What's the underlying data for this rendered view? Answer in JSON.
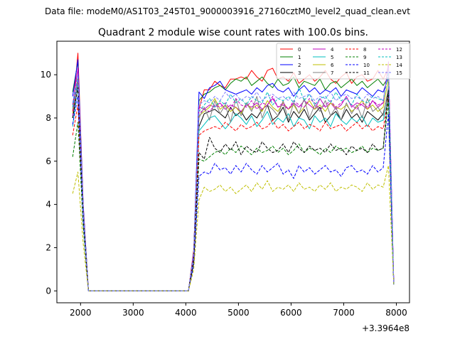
{
  "figure": {
    "suptitle": "Data file: modeM0/AS1T03_245T01_9000003916_27160cztM0_level2_quad_clean.evt"
  },
  "chart_data": {
    "type": "line",
    "title": "Quadrant 2 module wise count rates with 100.0s bins.",
    "xlabel": "",
    "ylabel": "",
    "x_offset_label": "+3.3964e8",
    "xlim": [
      1550,
      8250
    ],
    "ylim": [
      -0.55,
      11.55
    ],
    "xticks": [
      2000,
      3000,
      4000,
      5000,
      6000,
      7000,
      8000
    ],
    "xtick_labels": [
      "2000",
      "3000",
      "4000",
      "5000",
      "6000",
      "7000",
      "8000"
    ],
    "yticks": [
      0,
      2,
      4,
      6,
      8,
      10
    ],
    "ytick_labels": [
      "0",
      "2",
      "4",
      "6",
      "8",
      "10"
    ],
    "grid": false,
    "legend_position": "top-right",
    "legend_columns": 4,
    "gap_x": [
      2150,
      2250,
      2350,
      2450,
      2550,
      2650,
      2750,
      2850,
      2950,
      3050,
      3150,
      3250,
      3350,
      3450,
      3550,
      3650,
      3750,
      3850,
      3950,
      4050
    ],
    "seg1_x": [
      1850,
      1950,
      2050,
      2150
    ],
    "seg2_x": [
      4050,
      4150,
      4250,
      4350,
      4450,
      4550,
      4650,
      4750,
      4850,
      4950,
      5050,
      5150,
      5250,
      5350,
      5450,
      5550,
      5650,
      5750,
      5850,
      5950,
      6050,
      6150,
      6250,
      6350,
      6450,
      6550,
      6650,
      6750,
      6850,
      6950,
      7050,
      7150,
      7250,
      7350,
      7450,
      7550,
      7650,
      7750,
      7850,
      7950
    ],
    "series": [
      {
        "name": "0",
        "color": "#ff0000",
        "dash": false,
        "seg1": [
          8.3,
          11.0,
          4.0,
          0.0
        ],
        "seg2": [
          0.0,
          1.9,
          8.4,
          9.3,
          9.3,
          9.7,
          9.5,
          9.4,
          9.8,
          9.8,
          9.9,
          9.8,
          10.2,
          9.9,
          9.7,
          10.2,
          10.3,
          9.8,
          9.9,
          9.7,
          10.1,
          9.6,
          9.8,
          10.0,
          9.7,
          9.9,
          10.2,
          9.8,
          9.6,
          9.9,
          10.1,
          9.6,
          9.9,
          10.0,
          9.7,
          9.8,
          10.2,
          9.8,
          10.3,
          0.4
        ]
      },
      {
        "name": "1",
        "color": "#008000",
        "dash": false,
        "seg1": [
          9.2,
          10.6,
          3.9,
          0.0
        ],
        "seg2": [
          0.0,
          1.7,
          8.8,
          9.1,
          9.2,
          9.4,
          9.5,
          9.3,
          9.6,
          9.8,
          9.7,
          9.9,
          9.5,
          9.7,
          9.9,
          9.6,
          9.4,
          9.8,
          9.5,
          9.6,
          9.9,
          9.4,
          9.7,
          9.6,
          9.5,
          9.8,
          9.3,
          9.6,
          9.7,
          9.4,
          9.6,
          9.8,
          9.5,
          9.7,
          9.4,
          9.6,
          9.8,
          9.5,
          9.9,
          0.4
        ]
      },
      {
        "name": "2",
        "color": "#0000ff",
        "dash": false,
        "seg1": [
          9.0,
          10.7,
          4.0,
          0.0
        ],
        "seg2": [
          0.0,
          1.8,
          9.2,
          8.9,
          9.4,
          9.5,
          9.7,
          9.3,
          9.2,
          9.1,
          9.2,
          9.3,
          9.1,
          9.4,
          9.2,
          9.5,
          9.6,
          9.3,
          9.2,
          9.4,
          9.0,
          9.3,
          9.5,
          9.2,
          9.4,
          9.1,
          9.3,
          9.2,
          9.4,
          9.0,
          9.3,
          9.2,
          9.1,
          9.4,
          9.2,
          9.0,
          9.3,
          9.2,
          9.9,
          0.4
        ]
      },
      {
        "name": "3",
        "color": "#000000",
        "dash": false,
        "seg1": [
          8.0,
          9.9,
          3.7,
          0.0
        ],
        "seg2": [
          0.0,
          1.6,
          7.6,
          8.2,
          8.3,
          8.4,
          8.2,
          8.0,
          8.5,
          8.1,
          8.3,
          7.9,
          8.2,
          8.0,
          8.4,
          8.6,
          7.9,
          8.1,
          8.5,
          7.8,
          8.3,
          8.0,
          8.4,
          7.9,
          8.2,
          8.5,
          7.8,
          8.1,
          8.3,
          7.9,
          8.4,
          8.0,
          8.2,
          7.8,
          8.3,
          8.1,
          7.9,
          8.2,
          9.2,
          0.3
        ]
      },
      {
        "name": "4",
        "color": "#bf00bf",
        "dash": false,
        "seg1": [
          8.6,
          10.3,
          3.8,
          0.0
        ],
        "seg2": [
          0.0,
          1.7,
          8.5,
          8.4,
          8.6,
          8.5,
          8.7,
          8.4,
          8.6,
          8.5,
          8.3,
          8.6,
          8.5,
          8.7,
          8.4,
          8.6,
          8.9,
          8.5,
          8.6,
          8.4,
          8.7,
          8.5,
          8.8,
          8.6,
          8.4,
          8.9,
          8.5,
          8.7,
          8.4,
          8.6,
          9.0,
          8.5,
          8.7,
          8.6,
          8.4,
          8.8,
          8.5,
          8.7,
          10.5,
          0.4
        ]
      },
      {
        "name": "5",
        "color": "#00bfbf",
        "dash": false,
        "seg1": [
          7.6,
          9.6,
          3.6,
          0.0
        ],
        "seg2": [
          0.0,
          1.5,
          7.4,
          7.7,
          8.0,
          8.1,
          7.8,
          7.5,
          7.8,
          8.2,
          8.0,
          7.7,
          8.1,
          7.6,
          7.9,
          8.3,
          7.7,
          8.0,
          7.8,
          8.2,
          7.6,
          8.0,
          7.9,
          7.5,
          8.1,
          7.8,
          8.0,
          7.6,
          8.2,
          7.9,
          7.7,
          8.0,
          7.8,
          8.1,
          7.6,
          8.0,
          7.8,
          7.9,
          9.0,
          0.3
        ]
      },
      {
        "name": "6",
        "color": "#bfbf00",
        "dash": false,
        "seg1": [
          8.2,
          9.8,
          3.7,
          0.0
        ],
        "seg2": [
          0.0,
          1.6,
          8.1,
          8.3,
          8.5,
          8.9,
          8.4,
          8.6,
          8.3,
          8.5,
          8.2,
          8.7,
          8.4,
          8.6,
          8.3,
          8.8,
          8.5,
          8.3,
          8.7,
          8.4,
          8.6,
          8.2,
          8.5,
          8.8,
          8.4,
          8.6,
          8.3,
          8.7,
          8.5,
          8.4,
          8.6,
          8.3,
          8.5,
          8.8,
          8.4,
          8.6,
          8.3,
          8.5,
          9.8,
          0.3
        ]
      },
      {
        "name": "7",
        "color": "#808080",
        "dash": false,
        "seg1": [
          8.4,
          9.7,
          3.7,
          0.0
        ],
        "seg2": [
          0.0,
          1.6,
          8.0,
          8.5,
          7.9,
          8.8,
          8.2,
          8.6,
          7.8,
          8.9,
          8.1,
          8.7,
          8.3,
          9.0,
          8.0,
          8.6,
          8.4,
          8.1,
          8.8,
          7.9,
          8.7,
          8.2,
          8.9,
          8.0,
          8.6,
          8.3,
          8.8,
          8.1,
          8.5,
          7.9,
          8.7,
          8.2,
          8.6,
          8.0,
          8.9,
          8.3,
          8.5,
          8.1,
          9.4,
          0.3
        ]
      },
      {
        "name": "8",
        "color": "#ff0000",
        "dash": true,
        "seg1": [
          7.2,
          8.6,
          3.2,
          0.0
        ],
        "seg2": [
          0.0,
          1.5,
          7.2,
          7.4,
          7.5,
          7.6,
          7.5,
          7.8,
          7.6,
          7.4,
          7.7,
          7.5,
          7.6,
          7.8,
          7.5,
          7.6,
          7.9,
          7.5,
          7.7,
          7.4,
          7.6,
          7.8,
          7.5,
          7.7,
          7.6,
          7.4,
          7.8,
          7.5,
          7.6,
          7.7,
          7.4,
          7.6,
          7.8,
          7.5,
          7.7,
          7.4,
          7.6,
          7.5,
          9.0,
          0.3
        ]
      },
      {
        "name": "9",
        "color": "#008000",
        "dash": true,
        "seg1": [
          6.2,
          7.8,
          3.0,
          0.0
        ],
        "seg2": [
          0.0,
          1.3,
          6.1,
          6.0,
          6.2,
          6.4,
          6.5,
          6.3,
          6.6,
          6.4,
          6.7,
          6.5,
          6.3,
          6.6,
          6.4,
          6.5,
          6.7,
          6.4,
          6.6,
          6.3,
          6.5,
          6.8,
          6.4,
          6.6,
          6.5,
          6.3,
          6.6,
          6.4,
          6.7,
          6.5,
          6.6,
          6.4,
          6.5,
          6.7,
          6.4,
          6.6,
          6.5,
          6.6,
          8.8,
          0.3
        ]
      },
      {
        "name": "10",
        "color": "#0000ff",
        "dash": true,
        "seg1": [
          7.7,
          9.0,
          3.3,
          0.0
        ],
        "seg2": [
          0.0,
          1.2,
          5.3,
          5.5,
          5.4,
          5.9,
          5.6,
          5.7,
          5.4,
          5.8,
          5.5,
          5.9,
          5.6,
          5.4,
          5.8,
          5.5,
          5.7,
          5.9,
          5.4,
          5.6,
          5.2,
          5.8,
          5.5,
          5.7,
          5.4,
          5.6,
          5.8,
          5.5,
          5.6,
          5.3,
          5.7,
          5.8,
          5.5,
          5.6,
          5.4,
          5.8,
          5.5,
          5.7,
          8.2,
          0.3
        ]
      },
      {
        "name": "11",
        "color": "#000000",
        "dash": true,
        "seg1": [
          8.0,
          9.4,
          3.4,
          0.0
        ],
        "seg2": [
          0.0,
          1.4,
          6.4,
          6.1,
          7.1,
          6.6,
          6.4,
          6.8,
          6.5,
          6.9,
          6.3,
          6.7,
          6.5,
          6.4,
          6.9,
          6.6,
          6.4,
          6.5,
          6.8,
          6.4,
          6.9,
          6.6,
          6.4,
          6.7,
          6.5,
          6.6,
          6.4,
          6.8,
          6.5,
          6.6,
          6.3,
          6.7,
          6.5,
          6.6,
          6.4,
          6.8,
          6.5,
          6.6,
          9.3,
          0.3
        ]
      },
      {
        "name": "12",
        "color": "#bf00bf",
        "dash": true,
        "seg1": [
          8.1,
          9.9,
          3.7,
          0.0
        ],
        "seg2": [
          0.0,
          1.6,
          8.2,
          8.4,
          8.3,
          8.6,
          8.5,
          8.7,
          8.4,
          8.9,
          8.6,
          8.5,
          8.8,
          8.4,
          8.7,
          8.6,
          9.0,
          8.5,
          8.7,
          8.4,
          8.8,
          8.6,
          8.5,
          8.9,
          8.7,
          8.4,
          8.6,
          8.8,
          8.5,
          8.7,
          8.9,
          8.6,
          8.4,
          8.7,
          8.5,
          8.8,
          8.6,
          8.7,
          10.6,
          0.4
        ]
      },
      {
        "name": "13",
        "color": "#00bfbf",
        "dash": true,
        "seg1": [
          8.5,
          9.9,
          3.6,
          0.0
        ],
        "seg2": [
          0.0,
          1.7,
          8.3,
          8.6,
          8.9,
          8.5,
          8.8,
          8.6,
          9.1,
          8.7,
          8.9,
          8.6,
          9.0,
          8.8,
          8.7,
          9.2,
          8.6,
          8.9,
          8.8,
          9.0,
          8.7,
          9.4,
          8.8,
          9.1,
          8.6,
          8.9,
          9.0,
          8.7,
          9.2,
          8.8,
          8.9,
          8.6,
          9.1,
          8.8,
          8.7,
          9.0,
          8.9,
          8.8,
          10.1,
          0.3
        ]
      },
      {
        "name": "14",
        "color": "#bfbf00",
        "dash": true,
        "seg1": [
          4.5,
          5.5,
          2.2,
          0.0
        ],
        "seg2": [
          0.0,
          1.0,
          4.2,
          4.8,
          4.6,
          4.7,
          4.9,
          4.6,
          4.8,
          4.5,
          4.7,
          4.9,
          4.6,
          5.0,
          4.7,
          5.1,
          4.6,
          4.8,
          4.7,
          4.9,
          4.6,
          5.0,
          4.7,
          4.8,
          4.6,
          4.9,
          4.7,
          5.0,
          4.6,
          4.8,
          4.7,
          4.9,
          4.8,
          4.6,
          5.0,
          4.7,
          4.9,
          4.8,
          5.8,
          0.3
        ]
      },
      {
        "name": "15",
        "color": "#8080ff",
        "dash": true,
        "seg1": [
          8.7,
          10.0,
          3.7,
          0.0
        ],
        "seg2": [
          0.0,
          1.7,
          8.6,
          8.8,
          8.7,
          9.0,
          8.8,
          9.2,
          8.9,
          9.1,
          8.8,
          9.0,
          8.9,
          9.2,
          8.8,
          9.0,
          9.1,
          8.9,
          9.0,
          8.8,
          9.2,
          8.9,
          9.0,
          9.1,
          8.8,
          9.0,
          8.9,
          9.2,
          8.8,
          9.0,
          9.1,
          8.9,
          9.0,
          8.8,
          9.1,
          8.9,
          9.0,
          8.8,
          10.3,
          0.3
        ]
      }
    ]
  }
}
